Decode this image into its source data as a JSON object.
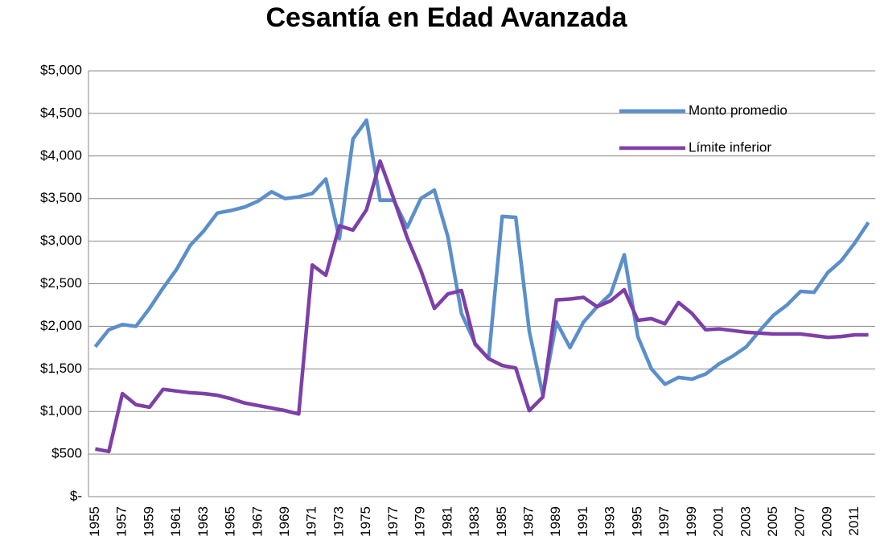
{
  "chart_data": {
    "type": "line",
    "title": "Cesantía en Edad Avanzada",
    "categories": [
      "1955",
      null,
      "1957",
      null,
      "1959",
      null,
      "1961",
      null,
      "1963",
      null,
      "1965",
      null,
      "1967",
      null,
      "1969",
      null,
      "1971",
      null,
      "1973",
      null,
      "1975",
      null,
      "1977",
      null,
      "1979",
      null,
      "1981",
      null,
      "1983",
      null,
      "1985",
      null,
      "1987",
      null,
      "1989",
      null,
      "1991",
      null,
      "1993",
      null,
      "1995",
      null,
      "1997",
      null,
      "1999",
      null,
      "2001",
      null,
      "2003",
      null,
      "2005",
      null,
      "2007",
      null,
      "2009",
      null,
      "2011",
      null
    ],
    "series": [
      {
        "name": "Monto promedio",
        "color": "#5b8fca",
        "values": [
          1760,
          1960,
          2020,
          2000,
          2210,
          2450,
          2670,
          2950,
          3120,
          3330,
          3360,
          3400,
          3470,
          3580,
          3500,
          3520,
          3560,
          3730,
          3030,
          4200,
          4420,
          3480,
          3480,
          3160,
          3500,
          3600,
          3050,
          2150,
          1800,
          1620,
          3290,
          3280,
          1940,
          1190,
          2050,
          1750,
          2050,
          2230,
          2380,
          2840,
          1880,
          1500,
          1320,
          1400,
          1380,
          1440,
          1560,
          1650,
          1760,
          1950,
          2130,
          2250,
          2410,
          2400,
          2630,
          2770,
          2980,
          3220
        ]
      },
      {
        "name": "Límite inferior",
        "color": "#7d3fa8",
        "values": [
          560,
          530,
          1210,
          1080,
          1050,
          1260,
          1240,
          1220,
          1210,
          1190,
          1150,
          1100,
          1070,
          1040,
          1010,
          970,
          2720,
          2600,
          3180,
          3130,
          3370,
          3940,
          3500,
          3040,
          2660,
          2210,
          2380,
          2420,
          1790,
          1620,
          1540,
          1510,
          1010,
          1170,
          2310,
          2320,
          2340,
          2230,
          2300,
          2430,
          2070,
          2090,
          2030,
          2280,
          2150,
          1960,
          1970,
          1950,
          1930,
          1920,
          1910,
          1910,
          1910,
          1890,
          1870,
          1880,
          1900,
          1900
        ]
      }
    ],
    "ylim": [
      0,
      5000
    ],
    "yticks": [
      {
        "value": 0,
        "label": "$-"
      },
      {
        "value": 500,
        "label": "$500"
      },
      {
        "value": 1000,
        "label": "$1,000"
      },
      {
        "value": 1500,
        "label": "$1,500"
      },
      {
        "value": 2000,
        "label": "$2,000"
      },
      {
        "value": 2500,
        "label": "$2,500"
      },
      {
        "value": 3000,
        "label": "$3,000"
      },
      {
        "value": 3500,
        "label": "$3,500"
      },
      {
        "value": 4000,
        "label": "$4,000"
      },
      {
        "value": 4500,
        "label": "$4,500"
      },
      {
        "value": 5000,
        "label": "$5,000"
      }
    ],
    "grid": true,
    "legend": "top-right"
  }
}
